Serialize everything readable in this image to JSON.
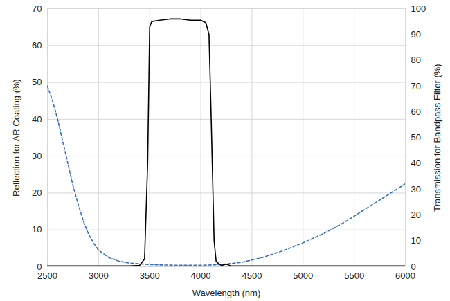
{
  "chart_data": {
    "type": "line",
    "x_label": "Wavelength (nm)",
    "y_label": "Reflection for AR Coating (%)",
    "y2_label": "Transmission for Bandpass Filter (%)",
    "xlim": [
      2500,
      6000
    ],
    "xticks": [
      2500,
      3000,
      3500,
      4000,
      4500,
      5000,
      5500,
      6000
    ],
    "ylim": [
      0,
      70
    ],
    "yticks": [
      0,
      10,
      20,
      30,
      40,
      50,
      60,
      70
    ],
    "y2lim": [
      0,
      100
    ],
    "y2ticks": [
      0,
      10,
      20,
      30,
      40,
      50,
      60,
      70,
      80,
      90,
      100
    ],
    "grid": true,
    "series": [
      {
        "color": "#3a6fbf",
        "line_style": "dashed",
        "x": [
          2500,
          2550,
          2600,
          2650,
          2700,
          2750,
          2800,
          2850,
          2900,
          2950,
          3000,
          3100,
          3200,
          3300,
          3400,
          3500,
          3600,
          3800,
          4000,
          4200,
          4400,
          4600,
          4800,
          5000,
          5200,
          5400,
          5600,
          5800,
          6000
        ],
        "values": [
          49,
          45,
          40,
          34,
          28,
          22,
          17,
          12.5,
          9,
          6.5,
          4.5,
          2.5,
          1.5,
          1.0,
          0.8,
          0.6,
          0.5,
          0.4,
          0.4,
          0.6,
          1.2,
          2.5,
          4.3,
          6.5,
          9.0,
          12.0,
          15.5,
          19,
          22.5
        ]
      },
      {
        "color": "#000000",
        "line_style": "solid",
        "axis": "y2",
        "x": [
          2500,
          3300,
          3400,
          3450,
          3480,
          3500,
          3520,
          3600,
          3700,
          3800,
          3900,
          4000,
          4050,
          4080,
          4100,
          4130,
          4150,
          4200,
          4250,
          4300,
          6000
        ],
        "values": [
          0.3,
          0.3,
          0.5,
          3,
          40,
          93,
          95,
          95.5,
          96,
          96,
          95.5,
          95.5,
          94.5,
          90,
          60,
          10,
          2,
          0.5,
          1,
          0.3,
          0.3
        ]
      }
    ]
  }
}
